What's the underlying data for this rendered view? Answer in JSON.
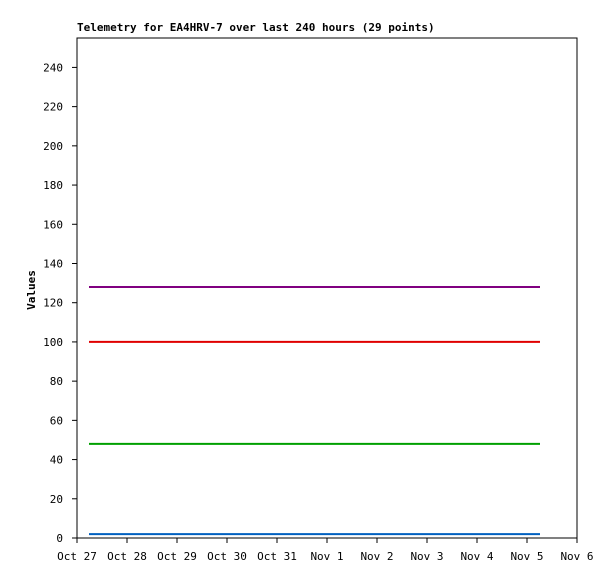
{
  "chart_data": {
    "type": "line",
    "title": "Telemetry for EA4HRV-7 over last 240 hours (29 points)",
    "y_label": "Values",
    "x": [
      0.24,
      9.26
    ],
    "xlim": [
      0,
      10
    ],
    "xticks": [
      {
        "value": 0,
        "label": "Oct 27"
      },
      {
        "value": 1,
        "label": "Oct 28"
      },
      {
        "value": 2,
        "label": "Oct 29"
      },
      {
        "value": 3,
        "label": "Oct 30"
      },
      {
        "value": 4,
        "label": "Oct 31"
      },
      {
        "value": 5,
        "label": "Nov 1"
      },
      {
        "value": 6,
        "label": "Nov 2"
      },
      {
        "value": 7,
        "label": "Nov 3"
      },
      {
        "value": 8,
        "label": "Nov 4"
      },
      {
        "value": 9,
        "label": "Nov 5"
      },
      {
        "value": 10,
        "label": "Nov 6"
      }
    ],
    "ylim": [
      0,
      255
    ],
    "yticks": [
      0,
      20,
      40,
      60,
      80,
      100,
      120,
      140,
      160,
      180,
      200,
      220,
      240
    ],
    "series": [
      {
        "color": "#800080",
        "values": [
          128,
          128
        ]
      },
      {
        "color": "#e00000",
        "values": [
          100,
          100
        ]
      },
      {
        "color": "#00a000",
        "values": [
          48,
          48
        ]
      },
      {
        "color": "#0060c0",
        "values": [
          2,
          2
        ]
      }
    ]
  }
}
